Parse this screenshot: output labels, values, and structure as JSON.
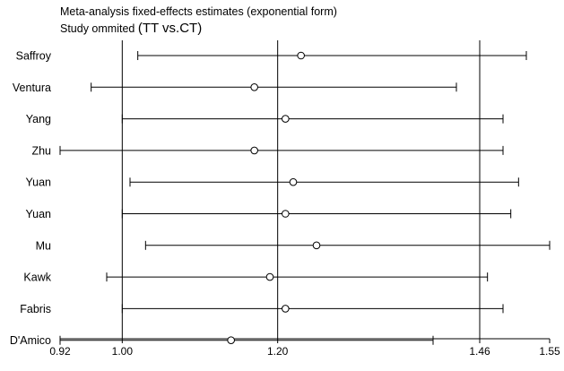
{
  "header": {
    "title": "Meta-analysis fixed-effects estimates (exponential form)",
    "subtitle_prefix": "Study ommited ",
    "subtitle_suffix": "(TT vs.CT)"
  },
  "chart_data": {
    "type": "forest",
    "title": "Meta-analysis fixed-effects estimates (exponential form)",
    "subtitle": "Study ommited (TT vs.CT)",
    "xlim": [
      0.92,
      1.55
    ],
    "x_ticks": [
      {
        "value": 0.92,
        "label": "0.92"
      },
      {
        "value": 1.0,
        "label": "1.00"
      },
      {
        "value": 1.2,
        "label": "1.20"
      },
      {
        "value": 1.46,
        "label": "1.46"
      },
      {
        "value": 1.55,
        "label": "1.55"
      }
    ],
    "reference_lines": [
      1.0,
      1.2,
      1.46
    ],
    "studies": [
      {
        "name": "Saffroy",
        "estimate": 1.23,
        "lower": 1.02,
        "upper": 1.52
      },
      {
        "name": "Ventura",
        "estimate": 1.17,
        "lower": 0.96,
        "upper": 1.43
      },
      {
        "name": "Yang",
        "estimate": 1.21,
        "lower": 1.0,
        "upper": 1.49
      },
      {
        "name": "Zhu",
        "estimate": 1.17,
        "lower": 0.92,
        "upper": 1.49
      },
      {
        "name": "Yuan",
        "estimate": 1.22,
        "lower": 1.01,
        "upper": 1.51
      },
      {
        "name": "Yuan",
        "estimate": 1.21,
        "lower": 1.0,
        "upper": 1.5
      },
      {
        "name": "Mu",
        "estimate": 1.25,
        "lower": 1.03,
        "upper": 1.55
      },
      {
        "name": "Kawk",
        "estimate": 1.19,
        "lower": 0.98,
        "upper": 1.47
      },
      {
        "name": "Fabris",
        "estimate": 1.21,
        "lower": 1.0,
        "upper": 1.49
      },
      {
        "name": "D'Amico",
        "estimate": 1.14,
        "lower": 0.92,
        "upper": 1.4
      }
    ]
  }
}
